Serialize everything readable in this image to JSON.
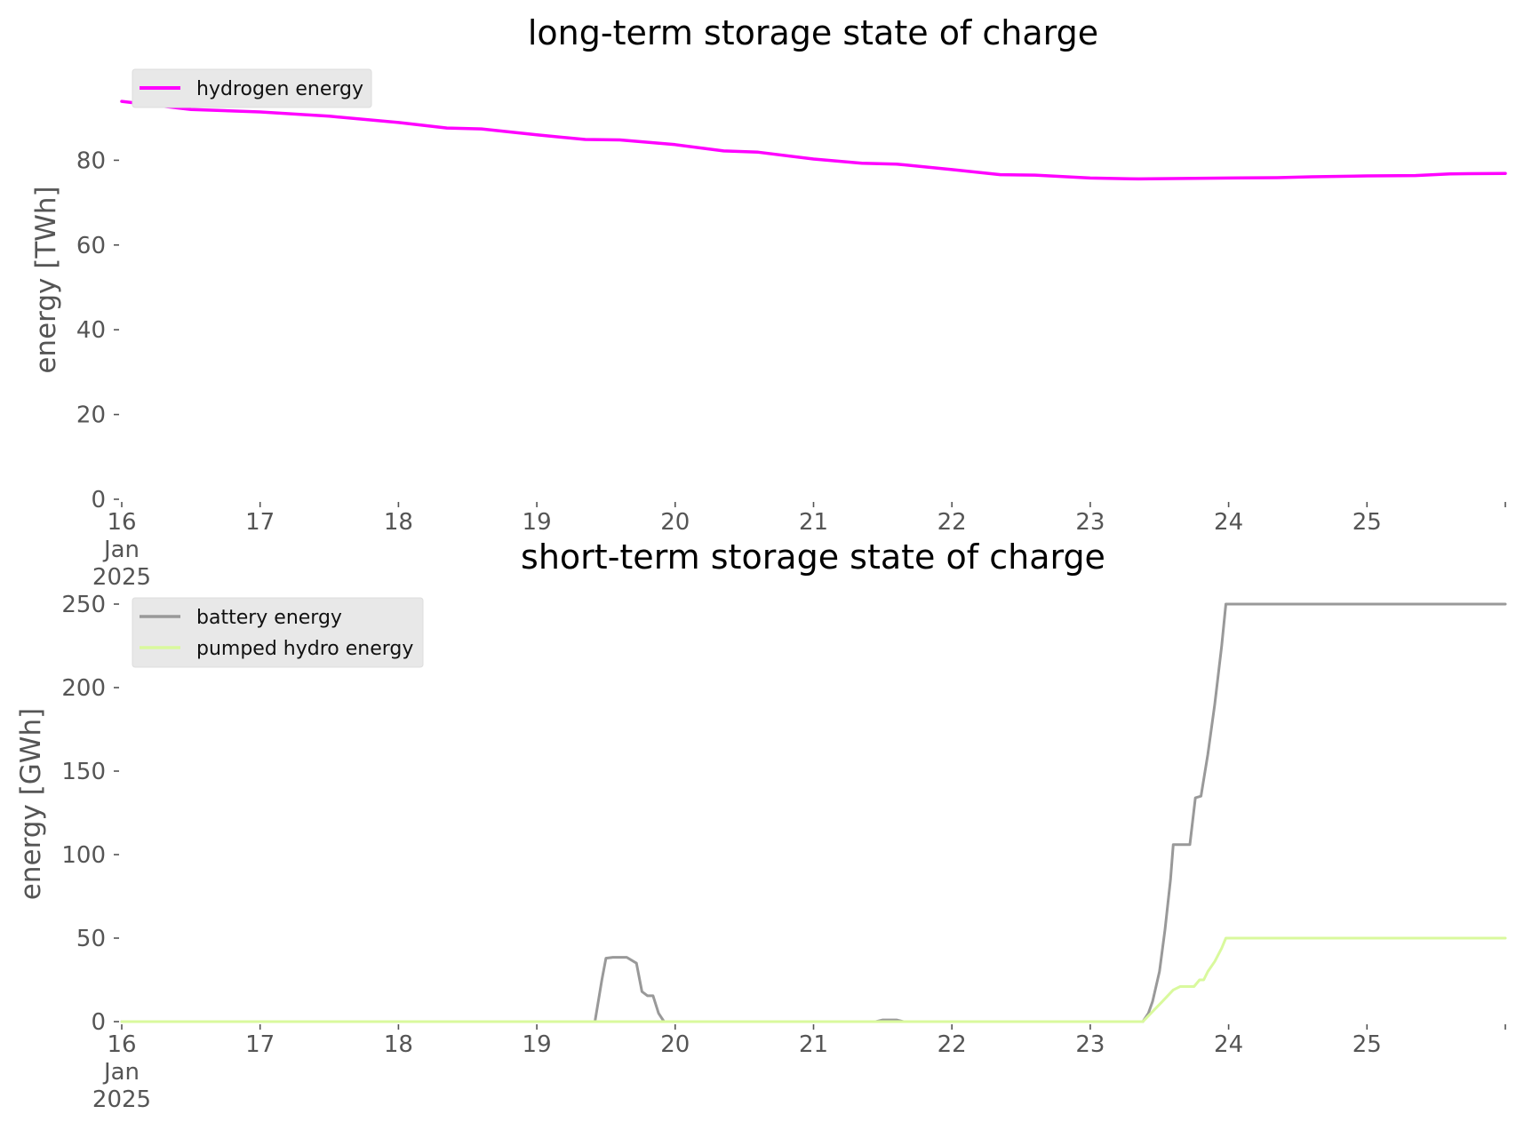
{
  "colors": {
    "hydrogen": "#ff00ff",
    "battery": "#999999",
    "pumped_hydro": "#d9f99d",
    "legend_bg": "#e8e8e8",
    "tick_text": "#555555",
    "background": "#ffffff"
  },
  "chart_data": [
    {
      "type": "line",
      "title": "long-term storage state of charge",
      "xlabel": "",
      "ylabel": "energy [TWh]",
      "x_ticks": [
        "16\nJan\n2025",
        "17",
        "18",
        "19",
        "20",
        "21",
        "22",
        "23",
        "24",
        "25"
      ],
      "xlim": [
        16,
        26
      ],
      "ylim": [
        0,
        100
      ],
      "y_ticks": [
        0,
        20,
        40,
        60,
        80
      ],
      "grid": false,
      "legend_position": "top-left",
      "series": [
        {
          "name": "hydrogen energy",
          "color": "#ff00ff",
          "points": [
            [
              16.0,
              93.9
            ],
            [
              16.5,
              92.0
            ],
            [
              17.0,
              91.4
            ],
            [
              17.5,
              90.4
            ],
            [
              18.0,
              88.9
            ],
            [
              18.35,
              87.6
            ],
            [
              18.6,
              87.4
            ],
            [
              19.0,
              86.0
            ],
            [
              19.35,
              84.9
            ],
            [
              19.6,
              84.8
            ],
            [
              20.0,
              83.7
            ],
            [
              20.35,
              82.2
            ],
            [
              20.6,
              81.9
            ],
            [
              21.0,
              80.3
            ],
            [
              21.35,
              79.3
            ],
            [
              21.6,
              79.1
            ],
            [
              22.0,
              77.8
            ],
            [
              22.35,
              76.6
            ],
            [
              22.6,
              76.5
            ],
            [
              23.0,
              75.8
            ],
            [
              23.35,
              75.6
            ],
            [
              24.0,
              75.8
            ],
            [
              24.35,
              75.9
            ],
            [
              24.6,
              76.1
            ],
            [
              25.0,
              76.3
            ],
            [
              25.35,
              76.4
            ],
            [
              25.6,
              76.8
            ],
            [
              26.0,
              76.9
            ]
          ]
        }
      ]
    },
    {
      "type": "line",
      "title": "short-term storage state of charge",
      "xlabel": "",
      "ylabel": "energy [GWh]",
      "x_ticks": [
        "16\nJan\n2025",
        "17",
        "18",
        "19",
        "20",
        "21",
        "22",
        "23",
        "24",
        "25"
      ],
      "xlim": [
        16,
        26
      ],
      "ylim": [
        0,
        250
      ],
      "y_ticks": [
        0,
        50,
        100,
        150,
        200,
        250
      ],
      "grid": false,
      "legend_position": "top-left",
      "series": [
        {
          "name": "battery energy",
          "color": "#999999",
          "points": [
            [
              16.0,
              0
            ],
            [
              19.42,
              0
            ],
            [
              19.47,
              25
            ],
            [
              19.5,
              38
            ],
            [
              19.55,
              38.5
            ],
            [
              19.65,
              38.5
            ],
            [
              19.72,
              35
            ],
            [
              19.76,
              18
            ],
            [
              19.8,
              15.5
            ],
            [
              19.84,
              15.5
            ],
            [
              19.88,
              5
            ],
            [
              19.92,
              0
            ],
            [
              21.45,
              0
            ],
            [
              21.5,
              1
            ],
            [
              21.6,
              1
            ],
            [
              21.65,
              0
            ],
            [
              23.38,
              0
            ],
            [
              23.42,
              5
            ],
            [
              23.45,
              12
            ],
            [
              23.5,
              30
            ],
            [
              23.54,
              55
            ],
            [
              23.58,
              85
            ],
            [
              23.6,
              106
            ],
            [
              23.72,
              106
            ],
            [
              23.76,
              134
            ],
            [
              23.8,
              135
            ],
            [
              23.85,
              160
            ],
            [
              23.9,
              190
            ],
            [
              23.95,
              225
            ],
            [
              23.98,
              250
            ],
            [
              26.0,
              250
            ]
          ]
        },
        {
          "name": "pumped hydro energy",
          "color": "#d9f99d",
          "points": [
            [
              16.0,
              0
            ],
            [
              23.38,
              0
            ],
            [
              23.45,
              6
            ],
            [
              23.52,
              12
            ],
            [
              23.6,
              19
            ],
            [
              23.65,
              21
            ],
            [
              23.75,
              21
            ],
            [
              23.79,
              25
            ],
            [
              23.82,
              25
            ],
            [
              23.85,
              30
            ],
            [
              23.9,
              36
            ],
            [
              23.95,
              44
            ],
            [
              23.98,
              50
            ],
            [
              26.0,
              50
            ]
          ]
        }
      ]
    }
  ]
}
